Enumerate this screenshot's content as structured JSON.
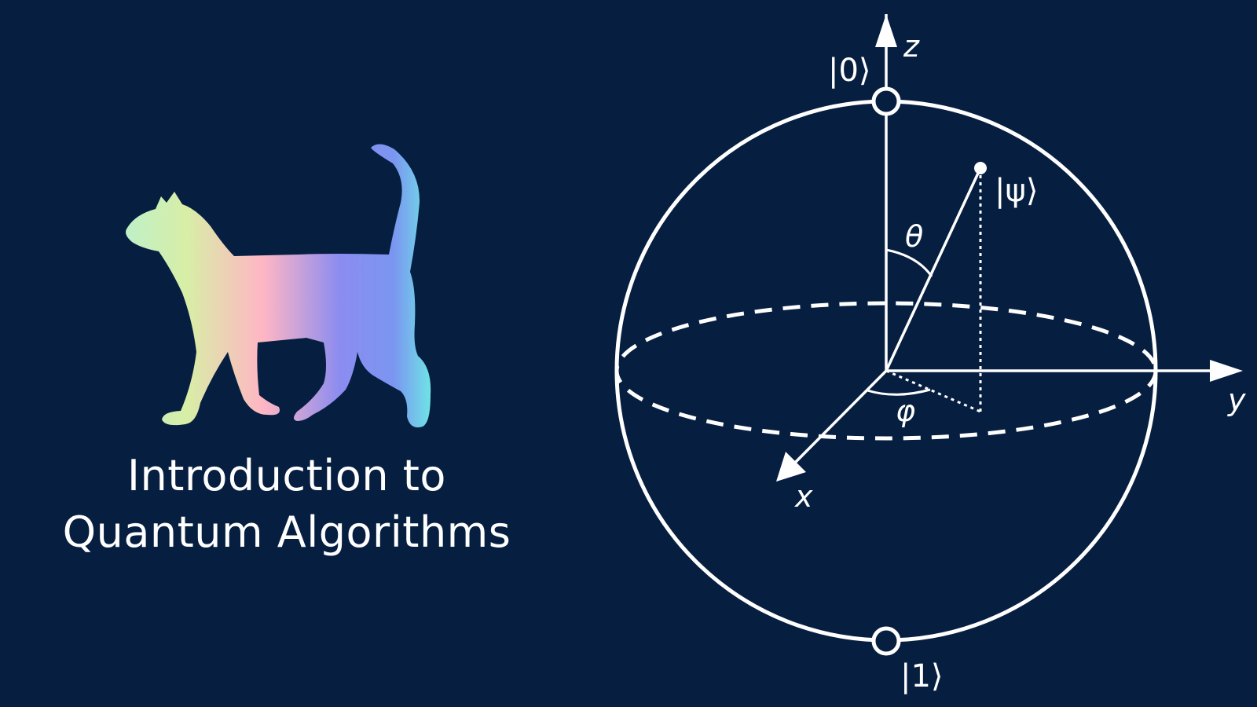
{
  "title": {
    "line1": "Introduction to",
    "line2": "Quantum Algorithms"
  },
  "illustration": {
    "icon": "cat-silhouette-icon",
    "gradient_colors": [
      "#d8f0a8",
      "#ffb6c4",
      "#8c8cf0",
      "#7ea0f2",
      "#6fe0e6"
    ]
  },
  "bloch_sphere": {
    "axes": {
      "z": "z",
      "y": "y",
      "x": "x"
    },
    "states": {
      "zero": "|0⟩",
      "one": "|1⟩",
      "psi": "|ψ⟩"
    },
    "angles": {
      "polar": "θ",
      "azimuthal": "φ"
    },
    "colors": {
      "background": "#061e40",
      "lines": "#ffffff"
    }
  }
}
